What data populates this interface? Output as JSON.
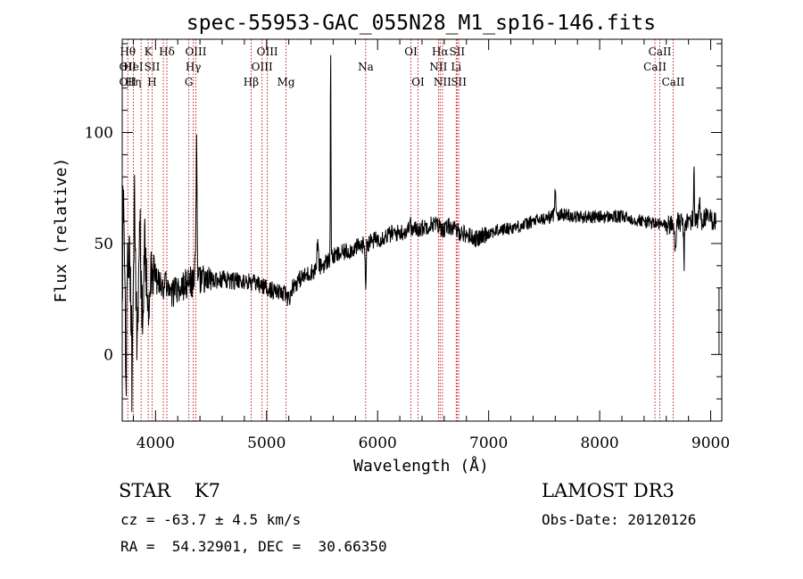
{
  "chart_data": {
    "type": "line",
    "title": "spec-55953-GAC_055N28_M1_sp16-146.fits",
    "xlabel": "Wavelength (Å)",
    "ylabel": "Flux (relative)",
    "xlim": [
      3700,
      9100
    ],
    "ylim": [
      -30,
      142
    ],
    "x_ticks": [
      4000,
      5000,
      6000,
      7000,
      8000,
      9000
    ],
    "x_tick_labels": [
      "4000",
      "5000",
      "6000",
      "7000",
      "8000",
      "9000"
    ],
    "y_ticks": [
      0,
      50,
      100
    ],
    "y_tick_labels": [
      "0",
      "50",
      "100"
    ],
    "x_minor_step": 200,
    "y_minor_step": 10,
    "grid": false,
    "line_color": "#000000",
    "marker_color": "#c00000",
    "spectrum_anchors": [
      [
        3700,
        30
      ],
      [
        3750,
        28
      ],
      [
        3800,
        31
      ],
      [
        3850,
        29
      ],
      [
        3900,
        33
      ],
      [
        3950,
        31
      ],
      [
        4000,
        33
      ],
      [
        4050,
        30
      ],
      [
        4100,
        31
      ],
      [
        4150,
        28
      ],
      [
        4200,
        30
      ],
      [
        4250,
        31
      ],
      [
        4300,
        33
      ],
      [
        4350,
        32
      ],
      [
        4400,
        34
      ],
      [
        4500,
        33
      ],
      [
        4600,
        34
      ],
      [
        4700,
        33
      ],
      [
        4800,
        33
      ],
      [
        4900,
        32
      ],
      [
        5000,
        30
      ],
      [
        5100,
        28
      ],
      [
        5150,
        27
      ],
      [
        5200,
        29
      ],
      [
        5300,
        34
      ],
      [
        5400,
        37
      ],
      [
        5500,
        40
      ],
      [
        5600,
        44
      ],
      [
        5700,
        46
      ],
      [
        5800,
        48
      ],
      [
        5900,
        50
      ],
      [
        6000,
        52
      ],
      [
        6100,
        54
      ],
      [
        6200,
        55
      ],
      [
        6300,
        56
      ],
      [
        6400,
        57
      ],
      [
        6500,
        59
      ],
      [
        6550,
        58
      ],
      [
        6600,
        56
      ],
      [
        6650,
        58
      ],
      [
        6700,
        56
      ],
      [
        6800,
        54
      ],
      [
        6900,
        52
      ],
      [
        7000,
        55
      ],
      [
        7100,
        56
      ],
      [
        7200,
        57
      ],
      [
        7300,
        58
      ],
      [
        7400,
        60
      ],
      [
        7500,
        61
      ],
      [
        7600,
        63
      ],
      [
        7700,
        63
      ],
      [
        7800,
        62
      ],
      [
        7900,
        62
      ],
      [
        8000,
        62
      ],
      [
        8100,
        62
      ],
      [
        8200,
        62
      ],
      [
        8300,
        61
      ],
      [
        8400,
        60
      ],
      [
        8500,
        59
      ],
      [
        8600,
        58
      ],
      [
        8700,
        59
      ],
      [
        8800,
        60
      ],
      [
        8900,
        61
      ],
      [
        9000,
        61
      ],
      [
        9050,
        60
      ]
    ],
    "spectrum_features": [
      {
        "x": 3710,
        "dy": 50,
        "width": 6
      },
      {
        "x": 3735,
        "dy": -35,
        "width": 6
      },
      {
        "x": 3760,
        "dy": 20,
        "width": 8
      },
      {
        "x": 3790,
        "dy": -48,
        "width": 6
      },
      {
        "x": 3812,
        "dy": 40,
        "width": 6
      },
      {
        "x": 3835,
        "dy": -30,
        "width": 6
      },
      {
        "x": 3860,
        "dy": 35,
        "width": 6
      },
      {
        "x": 3880,
        "dy": -12,
        "width": 10
      },
      {
        "x": 3905,
        "dy": 18,
        "width": 8
      },
      {
        "x": 3935,
        "dy": -14,
        "width": 8
      },
      {
        "x": 3970,
        "dy": 12,
        "width": 8
      },
      {
        "x": 4370,
        "dy": 66,
        "width": 5
      },
      {
        "x": 4360,
        "dy": 20,
        "width": 6
      },
      {
        "x": 5200,
        "dy": -4,
        "width": 20
      },
      {
        "x": 5460,
        "dy": 12,
        "width": 8
      },
      {
        "x": 5577,
        "dy": 95,
        "width": 4
      },
      {
        "x": 5893,
        "dy": -18,
        "width": 6
      },
      {
        "x": 6290,
        "dy": 6,
        "width": 8
      },
      {
        "x": 7600,
        "dy": 12,
        "width": 8
      },
      {
        "x": 8680,
        "dy": -12,
        "width": 8
      },
      {
        "x": 8760,
        "dy": -18,
        "width": 6
      },
      {
        "x": 8850,
        "dy": 27,
        "width": 4
      },
      {
        "x": 8900,
        "dy": 9,
        "width": 6
      }
    ],
    "noise_segments": [
      {
        "from": 3700,
        "to": 3800,
        "amp": 20
      },
      {
        "from": 3800,
        "to": 4000,
        "amp": 12
      },
      {
        "from": 4000,
        "to": 4500,
        "amp": 7
      },
      {
        "from": 4500,
        "to": 5500,
        "amp": 4
      },
      {
        "from": 5500,
        "to": 7000,
        "amp": 4
      },
      {
        "from": 7000,
        "to": 8600,
        "amp": 3
      },
      {
        "from": 8600,
        "to": 9050,
        "amp": 5
      }
    ],
    "end_segment": {
      "x": 9075,
      "y_from": 30,
      "y_to": 0
    },
    "line_markers": [
      {
        "wavelength": 3750,
        "labels": [
          {
            "text": "Hθ",
            "row": 0
          },
          {
            "text": "OII",
            "row": 1
          },
          {
            "text": "OII",
            "row": 2
          }
        ]
      },
      {
        "wavelength": 3800,
        "labels": [
          {
            "text": "HeI",
            "row": 1
          },
          {
            "text": "Hη",
            "row": 2
          }
        ]
      },
      {
        "wavelength": 3870,
        "labels": []
      },
      {
        "wavelength": 3934,
        "labels": [
          {
            "text": "K",
            "row": 0
          }
        ]
      },
      {
        "wavelength": 3969,
        "labels": [
          {
            "text": "SII",
            "row": 1
          },
          {
            "text": "H",
            "row": 2
          }
        ]
      },
      {
        "wavelength": 4102,
        "labels": [
          {
            "text": "Hδ",
            "row": 0
          }
        ]
      },
      {
        "wavelength": 4070,
        "labels": []
      },
      {
        "wavelength": 4300,
        "labels": [
          {
            "text": "G",
            "row": 2
          }
        ]
      },
      {
        "wavelength": 4340,
        "labels": [
          {
            "text": "Hγ",
            "row": 1
          }
        ]
      },
      {
        "wavelength": 4363,
        "labels": [
          {
            "text": "OIII",
            "row": 0
          }
        ]
      },
      {
        "wavelength": 4861,
        "labels": [
          {
            "text": "Hβ",
            "row": 2
          }
        ]
      },
      {
        "wavelength": 4959,
        "labels": [
          {
            "text": "OIII",
            "row": 1
          }
        ]
      },
      {
        "wavelength": 5007,
        "labels": [
          {
            "text": "OIII",
            "row": 0
          }
        ]
      },
      {
        "wavelength": 5175,
        "labels": [
          {
            "text": "Mg",
            "row": 2
          }
        ]
      },
      {
        "wavelength": 5893,
        "labels": [
          {
            "text": "Na",
            "row": 1
          }
        ]
      },
      {
        "wavelength": 6300,
        "labels": [
          {
            "text": "OI",
            "row": 0
          }
        ]
      },
      {
        "wavelength": 6364,
        "labels": [
          {
            "text": "OI",
            "row": 2
          }
        ]
      },
      {
        "wavelength": 6548,
        "labels": [
          {
            "text": "NII",
            "row": 1
          }
        ]
      },
      {
        "wavelength": 6563,
        "labels": [
          {
            "text": "Hα",
            "row": 0
          }
        ]
      },
      {
        "wavelength": 6584,
        "labels": [
          {
            "text": "NII",
            "row": 2
          }
        ]
      },
      {
        "wavelength": 6708,
        "labels": [
          {
            "text": "Li",
            "row": 1
          }
        ]
      },
      {
        "wavelength": 6716,
        "labels": [
          {
            "text": "SII",
            "row": 0
          }
        ]
      },
      {
        "wavelength": 6731,
        "labels": [
          {
            "text": "SII",
            "row": 2
          }
        ]
      },
      {
        "wavelength": 8498,
        "labels": [
          {
            "text": "CaII",
            "row": 1
          }
        ]
      },
      {
        "wavelength": 8542,
        "labels": [
          {
            "text": "CaII",
            "row": 0
          }
        ]
      },
      {
        "wavelength": 8662,
        "labels": [
          {
            "text": "CaII",
            "row": 2
          }
        ]
      }
    ]
  },
  "footer": {
    "object_class": "STAR    K7",
    "survey": "LAMOST DR3",
    "cz": "cz = -63.7 ± 4.5 km/s",
    "obs_date": "Obs-Date: 20120126",
    "radec": "RA =  54.32901, DEC =  30.66350"
  }
}
